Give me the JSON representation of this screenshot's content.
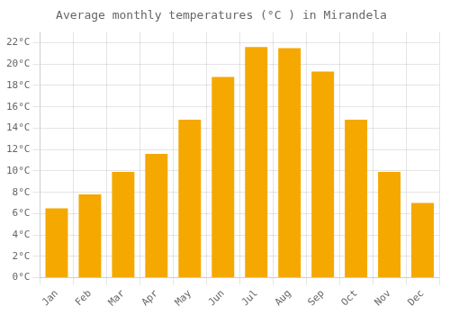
{
  "chart_data": {
    "type": "bar",
    "title": "Average monthly temperatures (°C ) in Mirandela",
    "categories": [
      "Jan",
      "Feb",
      "Mar",
      "Apr",
      "May",
      "Jun",
      "Jul",
      "Aug",
      "Sep",
      "Oct",
      "Nov",
      "Dec"
    ],
    "values": [
      6.5,
      7.8,
      9.9,
      11.6,
      14.8,
      18.8,
      21.6,
      21.5,
      19.3,
      14.8,
      9.9,
      7.0
    ],
    "color": "#F5A800",
    "ylim": [
      0,
      23
    ],
    "yticks": [
      {
        "value": 0,
        "label": "0°C"
      },
      {
        "value": 2,
        "label": "2°C"
      },
      {
        "value": 4,
        "label": "4°C"
      },
      {
        "value": 6,
        "label": "6°C"
      },
      {
        "value": 8,
        "label": "8°C"
      },
      {
        "value": 10,
        "label": "10°C"
      },
      {
        "value": 12,
        "label": "12°C"
      },
      {
        "value": 14,
        "label": "14°C"
      },
      {
        "value": 16,
        "label": "16°C"
      },
      {
        "value": 18,
        "label": "18°C"
      },
      {
        "value": 20,
        "label": "20°C"
      },
      {
        "value": 22,
        "label": "22°C"
      }
    ],
    "grid": true
  }
}
